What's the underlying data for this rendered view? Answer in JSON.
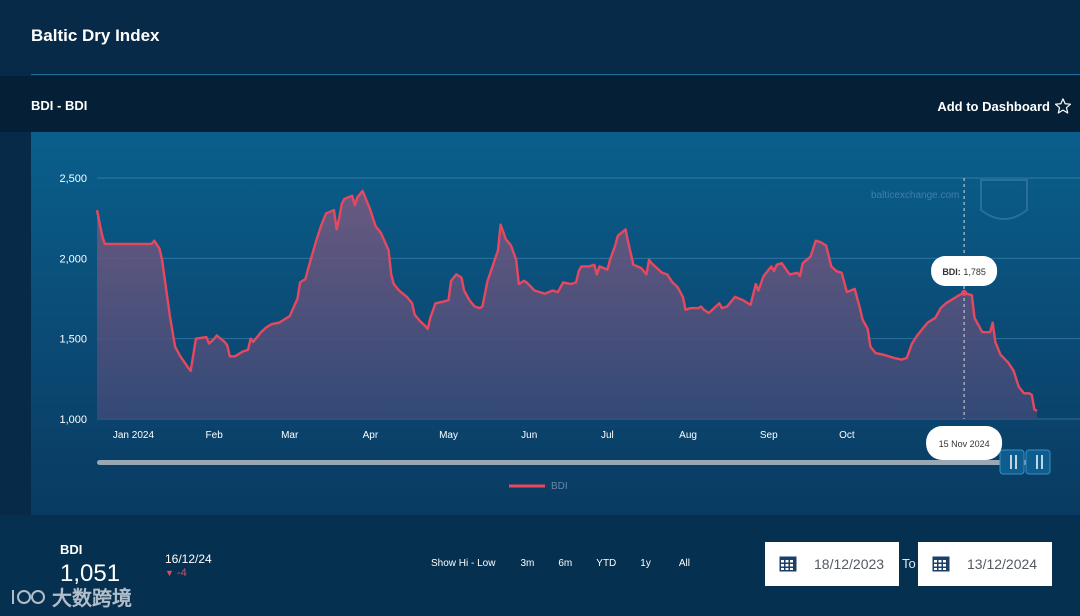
{
  "header": {
    "title": "Baltic Dry Index"
  },
  "section": {
    "title": "BDI - BDI",
    "add_to_dashboard": "Add to Dashboard"
  },
  "chart_data": {
    "type": "area",
    "watermark": "balticexchange.com",
    "x_start": "2023-12-18",
    "x_end": "2024-12-13",
    "ylim": [
      1000,
      2500
    ],
    "y_ticks": [
      1000,
      1500,
      2000,
      2500
    ],
    "y_tick_labels": [
      "1,000",
      "1,500",
      "2,000",
      "2,500"
    ],
    "x_tick_labels": [
      {
        "date": "2024-01-01",
        "label": "Jan 2024"
      },
      {
        "date": "2024-02-01",
        "label": "Feb"
      },
      {
        "date": "2024-03-01",
        "label": "Mar"
      },
      {
        "date": "2024-04-01",
        "label": "Apr"
      },
      {
        "date": "2024-05-01",
        "label": "May"
      },
      {
        "date": "2024-06-01",
        "label": "Jun"
      },
      {
        "date": "2024-07-01",
        "label": "Jul"
      },
      {
        "date": "2024-08-01",
        "label": "Aug"
      },
      {
        "date": "2024-09-01",
        "label": "Sep"
      },
      {
        "date": "2024-10-01",
        "label": "Oct"
      }
    ],
    "series": [
      {
        "name": "BDI",
        "color": "#e8485f",
        "points": [
          [
            "2023-12-18",
            2300
          ],
          [
            "2023-12-20",
            2140
          ],
          [
            "2023-12-21",
            2090
          ],
          [
            "2023-12-27",
            2090
          ],
          [
            "2023-12-29",
            2090
          ],
          [
            "2024-01-03",
            2090
          ],
          [
            "2024-01-05",
            2090
          ],
          [
            "2024-01-08",
            2090
          ],
          [
            "2024-01-09",
            2110
          ],
          [
            "2024-01-11",
            2060
          ],
          [
            "2024-01-12",
            1990
          ],
          [
            "2024-01-15",
            1640
          ],
          [
            "2024-01-17",
            1450
          ],
          [
            "2024-01-19",
            1390
          ],
          [
            "2024-01-22",
            1320
          ],
          [
            "2024-01-23",
            1300
          ],
          [
            "2024-01-25",
            1500
          ],
          [
            "2024-01-29",
            1510
          ],
          [
            "2024-01-30",
            1470
          ],
          [
            "2024-02-01",
            1500
          ],
          [
            "2024-02-02",
            1520
          ],
          [
            "2024-02-05",
            1480
          ],
          [
            "2024-02-06",
            1460
          ],
          [
            "2024-02-07",
            1390
          ],
          [
            "2024-02-09",
            1390
          ],
          [
            "2024-02-12",
            1420
          ],
          [
            "2024-02-14",
            1430
          ],
          [
            "2024-02-15",
            1500
          ],
          [
            "2024-02-16",
            1480
          ],
          [
            "2024-02-19",
            1540
          ],
          [
            "2024-02-21",
            1570
          ],
          [
            "2024-02-23",
            1590
          ],
          [
            "2024-02-26",
            1600
          ],
          [
            "2024-02-28",
            1620
          ],
          [
            "2024-03-01",
            1640
          ],
          [
            "2024-03-04",
            1750
          ],
          [
            "2024-03-05",
            1850
          ],
          [
            "2024-03-07",
            1870
          ],
          [
            "2024-03-08",
            1930
          ],
          [
            "2024-03-11",
            2100
          ],
          [
            "2024-03-13",
            2200
          ],
          [
            "2024-03-15",
            2280
          ],
          [
            "2024-03-18",
            2300
          ],
          [
            "2024-03-19",
            2180
          ],
          [
            "2024-03-20",
            2250
          ],
          [
            "2024-03-21",
            2340
          ],
          [
            "2024-03-22",
            2370
          ],
          [
            "2024-03-25",
            2390
          ],
          [
            "2024-03-26",
            2330
          ],
          [
            "2024-03-27",
            2380
          ],
          [
            "2024-03-28",
            2400
          ],
          [
            "2024-03-29",
            2420
          ],
          [
            "2024-04-01",
            2300
          ],
          [
            "2024-04-03",
            2200
          ],
          [
            "2024-04-05",
            2160
          ],
          [
            "2024-04-08",
            2050
          ],
          [
            "2024-04-09",
            1900
          ],
          [
            "2024-04-10",
            1840
          ],
          [
            "2024-04-12",
            1800
          ],
          [
            "2024-04-15",
            1760
          ],
          [
            "2024-04-17",
            1720
          ],
          [
            "2024-04-18",
            1650
          ],
          [
            "2024-04-20",
            1610
          ],
          [
            "2024-04-22",
            1580
          ],
          [
            "2024-04-23",
            1560
          ],
          [
            "2024-04-24",
            1630
          ],
          [
            "2024-04-26",
            1720
          ],
          [
            "2024-04-29",
            1730
          ],
          [
            "2024-05-01",
            1740
          ],
          [
            "2024-05-02",
            1860
          ],
          [
            "2024-05-04",
            1900
          ],
          [
            "2024-05-06",
            1880
          ],
          [
            "2024-05-07",
            1800
          ],
          [
            "2024-05-09",
            1740
          ],
          [
            "2024-05-11",
            1700
          ],
          [
            "2024-05-13",
            1690
          ],
          [
            "2024-05-14",
            1700
          ],
          [
            "2024-05-16",
            1860
          ],
          [
            "2024-05-20",
            2050
          ],
          [
            "2024-05-21",
            2210
          ],
          [
            "2024-05-23",
            2120
          ],
          [
            "2024-05-25",
            2080
          ],
          [
            "2024-05-27",
            1990
          ],
          [
            "2024-05-28",
            1840
          ],
          [
            "2024-05-30",
            1860
          ],
          [
            "2024-05-31",
            1850
          ],
          [
            "2024-06-03",
            1800
          ],
          [
            "2024-06-05",
            1790
          ],
          [
            "2024-06-07",
            1780
          ],
          [
            "2024-06-10",
            1800
          ],
          [
            "2024-06-12",
            1790
          ],
          [
            "2024-06-14",
            1850
          ],
          [
            "2024-06-17",
            1840
          ],
          [
            "2024-06-19",
            1850
          ],
          [
            "2024-06-20",
            1920
          ],
          [
            "2024-06-21",
            1950
          ],
          [
            "2024-06-24",
            1950
          ],
          [
            "2024-06-26",
            1960
          ],
          [
            "2024-06-27",
            1900
          ],
          [
            "2024-06-28",
            1950
          ],
          [
            "2024-07-01",
            1930
          ],
          [
            "2024-07-02",
            1990
          ],
          [
            "2024-07-04",
            2080
          ],
          [
            "2024-07-05",
            2140
          ],
          [
            "2024-07-08",
            2180
          ],
          [
            "2024-07-09",
            2100
          ],
          [
            "2024-07-11",
            1960
          ],
          [
            "2024-07-14",
            1940
          ],
          [
            "2024-07-16",
            1900
          ],
          [
            "2024-07-17",
            1990
          ],
          [
            "2024-07-18",
            1970
          ],
          [
            "2024-07-22",
            1910
          ],
          [
            "2024-07-24",
            1900
          ],
          [
            "2024-07-26",
            1850
          ],
          [
            "2024-07-28",
            1820
          ],
          [
            "2024-07-30",
            1760
          ],
          [
            "2024-07-31",
            1680
          ],
          [
            "2024-08-02",
            1690
          ],
          [
            "2024-08-05",
            1690
          ],
          [
            "2024-08-06",
            1700
          ],
          [
            "2024-08-07",
            1680
          ],
          [
            "2024-08-09",
            1660
          ],
          [
            "2024-08-11",
            1690
          ],
          [
            "2024-08-13",
            1720
          ],
          [
            "2024-08-14",
            1690
          ],
          [
            "2024-08-16",
            1700
          ],
          [
            "2024-08-19",
            1760
          ],
          [
            "2024-08-22",
            1740
          ],
          [
            "2024-08-25",
            1710
          ],
          [
            "2024-08-27",
            1840
          ],
          [
            "2024-08-28",
            1800
          ],
          [
            "2024-08-30",
            1890
          ],
          [
            "2024-09-02",
            1950
          ],
          [
            "2024-09-03",
            1920
          ],
          [
            "2024-09-04",
            1960
          ],
          [
            "2024-09-06",
            1970
          ],
          [
            "2024-09-09",
            1900
          ],
          [
            "2024-09-12",
            1910
          ],
          [
            "2024-09-13",
            1890
          ],
          [
            "2024-09-14",
            1970
          ],
          [
            "2024-09-17",
            2010
          ],
          [
            "2024-09-19",
            2110
          ],
          [
            "2024-09-21",
            2100
          ],
          [
            "2024-09-23",
            2080
          ],
          [
            "2024-09-25",
            1950
          ],
          [
            "2024-09-27",
            1920
          ],
          [
            "2024-09-29",
            1910
          ],
          [
            "2024-10-01",
            1790
          ],
          [
            "2024-10-04",
            1810
          ],
          [
            "2024-10-06",
            1690
          ],
          [
            "2024-10-07",
            1620
          ],
          [
            "2024-10-09",
            1560
          ],
          [
            "2024-10-10",
            1450
          ],
          [
            "2024-10-12",
            1410
          ],
          [
            "2024-10-15",
            1400
          ],
          [
            "2024-10-17",
            1390
          ],
          [
            "2024-10-19",
            1380
          ],
          [
            "2024-10-22",
            1370
          ],
          [
            "2024-10-24",
            1380
          ],
          [
            "2024-10-26",
            1470
          ],
          [
            "2024-10-28",
            1520
          ],
          [
            "2024-10-30",
            1560
          ],
          [
            "2024-11-01",
            1600
          ],
          [
            "2024-11-04",
            1630
          ],
          [
            "2024-11-06",
            1690
          ],
          [
            "2024-11-08",
            1720
          ],
          [
            "2024-11-11",
            1750
          ],
          [
            "2024-11-13",
            1770
          ],
          [
            "2024-11-15",
            1785
          ],
          [
            "2024-11-18",
            1770
          ],
          [
            "2024-11-19",
            1630
          ],
          [
            "2024-11-21",
            1570
          ],
          [
            "2024-11-22",
            1540
          ],
          [
            "2024-11-25",
            1540
          ],
          [
            "2024-11-26",
            1600
          ],
          [
            "2024-11-27",
            1480
          ],
          [
            "2024-11-29",
            1400
          ],
          [
            "2024-12-02",
            1350
          ],
          [
            "2024-12-04",
            1300
          ],
          [
            "2024-12-06",
            1200
          ],
          [
            "2024-12-08",
            1160
          ],
          [
            "2024-12-10",
            1160
          ],
          [
            "2024-12-11",
            1150
          ],
          [
            "2024-12-12",
            1060
          ],
          [
            "2024-12-13",
            1051
          ]
        ]
      }
    ],
    "tooltip": {
      "date_label": "15 Nov 2024",
      "series": "BDI:",
      "value": "1,785"
    },
    "legend": [
      "BDI"
    ],
    "grid": true
  },
  "summary": {
    "label": "BDI",
    "value": "1,051",
    "date": "16/12/24",
    "change": "-4"
  },
  "range_buttons": [
    "Show Hi - Low",
    "3m",
    "6m",
    "YTD",
    "1y",
    "All"
  ],
  "date_range": {
    "from": "18/12/2023",
    "to_label": "To",
    "to": "13/12/2024"
  },
  "corner_watermark": "大数跨境"
}
